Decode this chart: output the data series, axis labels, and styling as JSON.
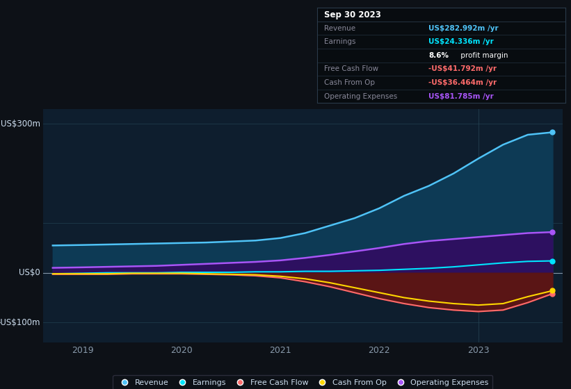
{
  "bg_color": "#0d1117",
  "plot_bg_color": "#0e1e2e",
  "grid_color": "#1e3a4a",
  "ylabel_300": "US$300m",
  "ylabel_0": "US$0",
  "ylabel_neg100": "-US$100m",
  "x_ticks": [
    2019,
    2020,
    2021,
    2022,
    2023
  ],
  "xlim": [
    2018.6,
    2023.85
  ],
  "ylim": [
    -140,
    330
  ],
  "revenue": {
    "label": "Revenue",
    "color": "#4fc3f7",
    "fill_color": "#0d3a55",
    "x": [
      2018.7,
      2019.0,
      2019.25,
      2019.5,
      2019.75,
      2020.0,
      2020.25,
      2020.5,
      2020.75,
      2021.0,
      2021.25,
      2021.5,
      2021.75,
      2022.0,
      2022.25,
      2022.5,
      2022.75,
      2023.0,
      2023.25,
      2023.5,
      2023.75
    ],
    "y": [
      55,
      56,
      57,
      58,
      59,
      60,
      61,
      63,
      65,
      70,
      80,
      95,
      110,
      130,
      155,
      175,
      200,
      230,
      258,
      278,
      283
    ]
  },
  "earnings": {
    "label": "Earnings",
    "color": "#00e5ff",
    "x": [
      2018.7,
      2019.0,
      2019.25,
      2019.5,
      2019.75,
      2020.0,
      2020.25,
      2020.5,
      2020.75,
      2021.0,
      2021.25,
      2021.5,
      2021.75,
      2022.0,
      2022.25,
      2022.5,
      2022.75,
      2023.0,
      2023.25,
      2023.5,
      2023.75
    ],
    "y": [
      -2,
      -1,
      0,
      0,
      0,
      1,
      1,
      1,
      2,
      2,
      3,
      3,
      4,
      5,
      7,
      9,
      12,
      16,
      20,
      23,
      24
    ]
  },
  "free_cash_flow": {
    "label": "Free Cash Flow",
    "color": "#ff6b6b",
    "fill_color": "#5a1515",
    "x": [
      2018.7,
      2019.0,
      2019.25,
      2019.5,
      2019.75,
      2020.0,
      2020.25,
      2020.5,
      2020.75,
      2021.0,
      2021.25,
      2021.5,
      2021.75,
      2022.0,
      2022.25,
      2022.5,
      2022.75,
      2023.0,
      2023.25,
      2023.5,
      2023.75
    ],
    "y": [
      -3,
      -3,
      -3,
      -2,
      -2,
      -2,
      -3,
      -4,
      -6,
      -10,
      -18,
      -28,
      -40,
      -52,
      -62,
      -70,
      -75,
      -78,
      -75,
      -60,
      -42
    ]
  },
  "cash_from_op": {
    "label": "Cash From Op",
    "color": "#ffd700",
    "x": [
      2018.7,
      2019.0,
      2019.25,
      2019.5,
      2019.75,
      2020.0,
      2020.25,
      2020.5,
      2020.75,
      2021.0,
      2021.25,
      2021.5,
      2021.75,
      2022.0,
      2022.25,
      2022.5,
      2022.75,
      2023.0,
      2023.25,
      2023.5,
      2023.75
    ],
    "y": [
      -2,
      -2,
      -2,
      -1,
      -1,
      -1,
      -2,
      -3,
      -4,
      -7,
      -12,
      -20,
      -30,
      -40,
      -50,
      -57,
      -62,
      -65,
      -62,
      -48,
      -36
    ]
  },
  "operating_expenses": {
    "label": "Operating Expenses",
    "color": "#a855f7",
    "fill_color": "#2d1060",
    "x": [
      2018.7,
      2019.0,
      2019.25,
      2019.5,
      2019.75,
      2020.0,
      2020.25,
      2020.5,
      2020.75,
      2021.0,
      2021.25,
      2021.5,
      2021.75,
      2022.0,
      2022.25,
      2022.5,
      2022.75,
      2023.0,
      2023.25,
      2023.5,
      2023.75
    ],
    "y": [
      10,
      11,
      12,
      13,
      14,
      16,
      18,
      20,
      22,
      25,
      30,
      36,
      43,
      50,
      58,
      64,
      68,
      72,
      76,
      80,
      82
    ]
  },
  "info_box": {
    "date": "Sep 30 2023",
    "rows": [
      {
        "label": "Revenue",
        "value": "US$282.992m /yr",
        "label_color": "#888899",
        "value_color": "#4fc3f7"
      },
      {
        "label": "Earnings",
        "value": "US$24.336m /yr",
        "label_color": "#888899",
        "value_color": "#00e5ff"
      },
      {
        "label": "",
        "value": "8.6% profit margin",
        "label_color": "#888899",
        "value_color": "#ffffff",
        "bold_prefix": "8.6%"
      },
      {
        "label": "Free Cash Flow",
        "value": "-US$41.792m /yr",
        "label_color": "#888899",
        "value_color": "#ff6b6b"
      },
      {
        "label": "Cash From Op",
        "value": "-US$36.464m /yr",
        "label_color": "#888899",
        "value_color": "#ff6b6b"
      },
      {
        "label": "Operating Expenses",
        "value": "US$81.785m /yr",
        "label_color": "#888899",
        "value_color": "#a855f7"
      }
    ]
  },
  "legend": [
    {
      "label": "Revenue",
      "color": "#4fc3f7"
    },
    {
      "label": "Earnings",
      "color": "#00e5ff"
    },
    {
      "label": "Free Cash Flow",
      "color": "#ff6b6b"
    },
    {
      "label": "Cash From Op",
      "color": "#ffd700"
    },
    {
      "label": "Operating Expenses",
      "color": "#a855f7"
    }
  ]
}
